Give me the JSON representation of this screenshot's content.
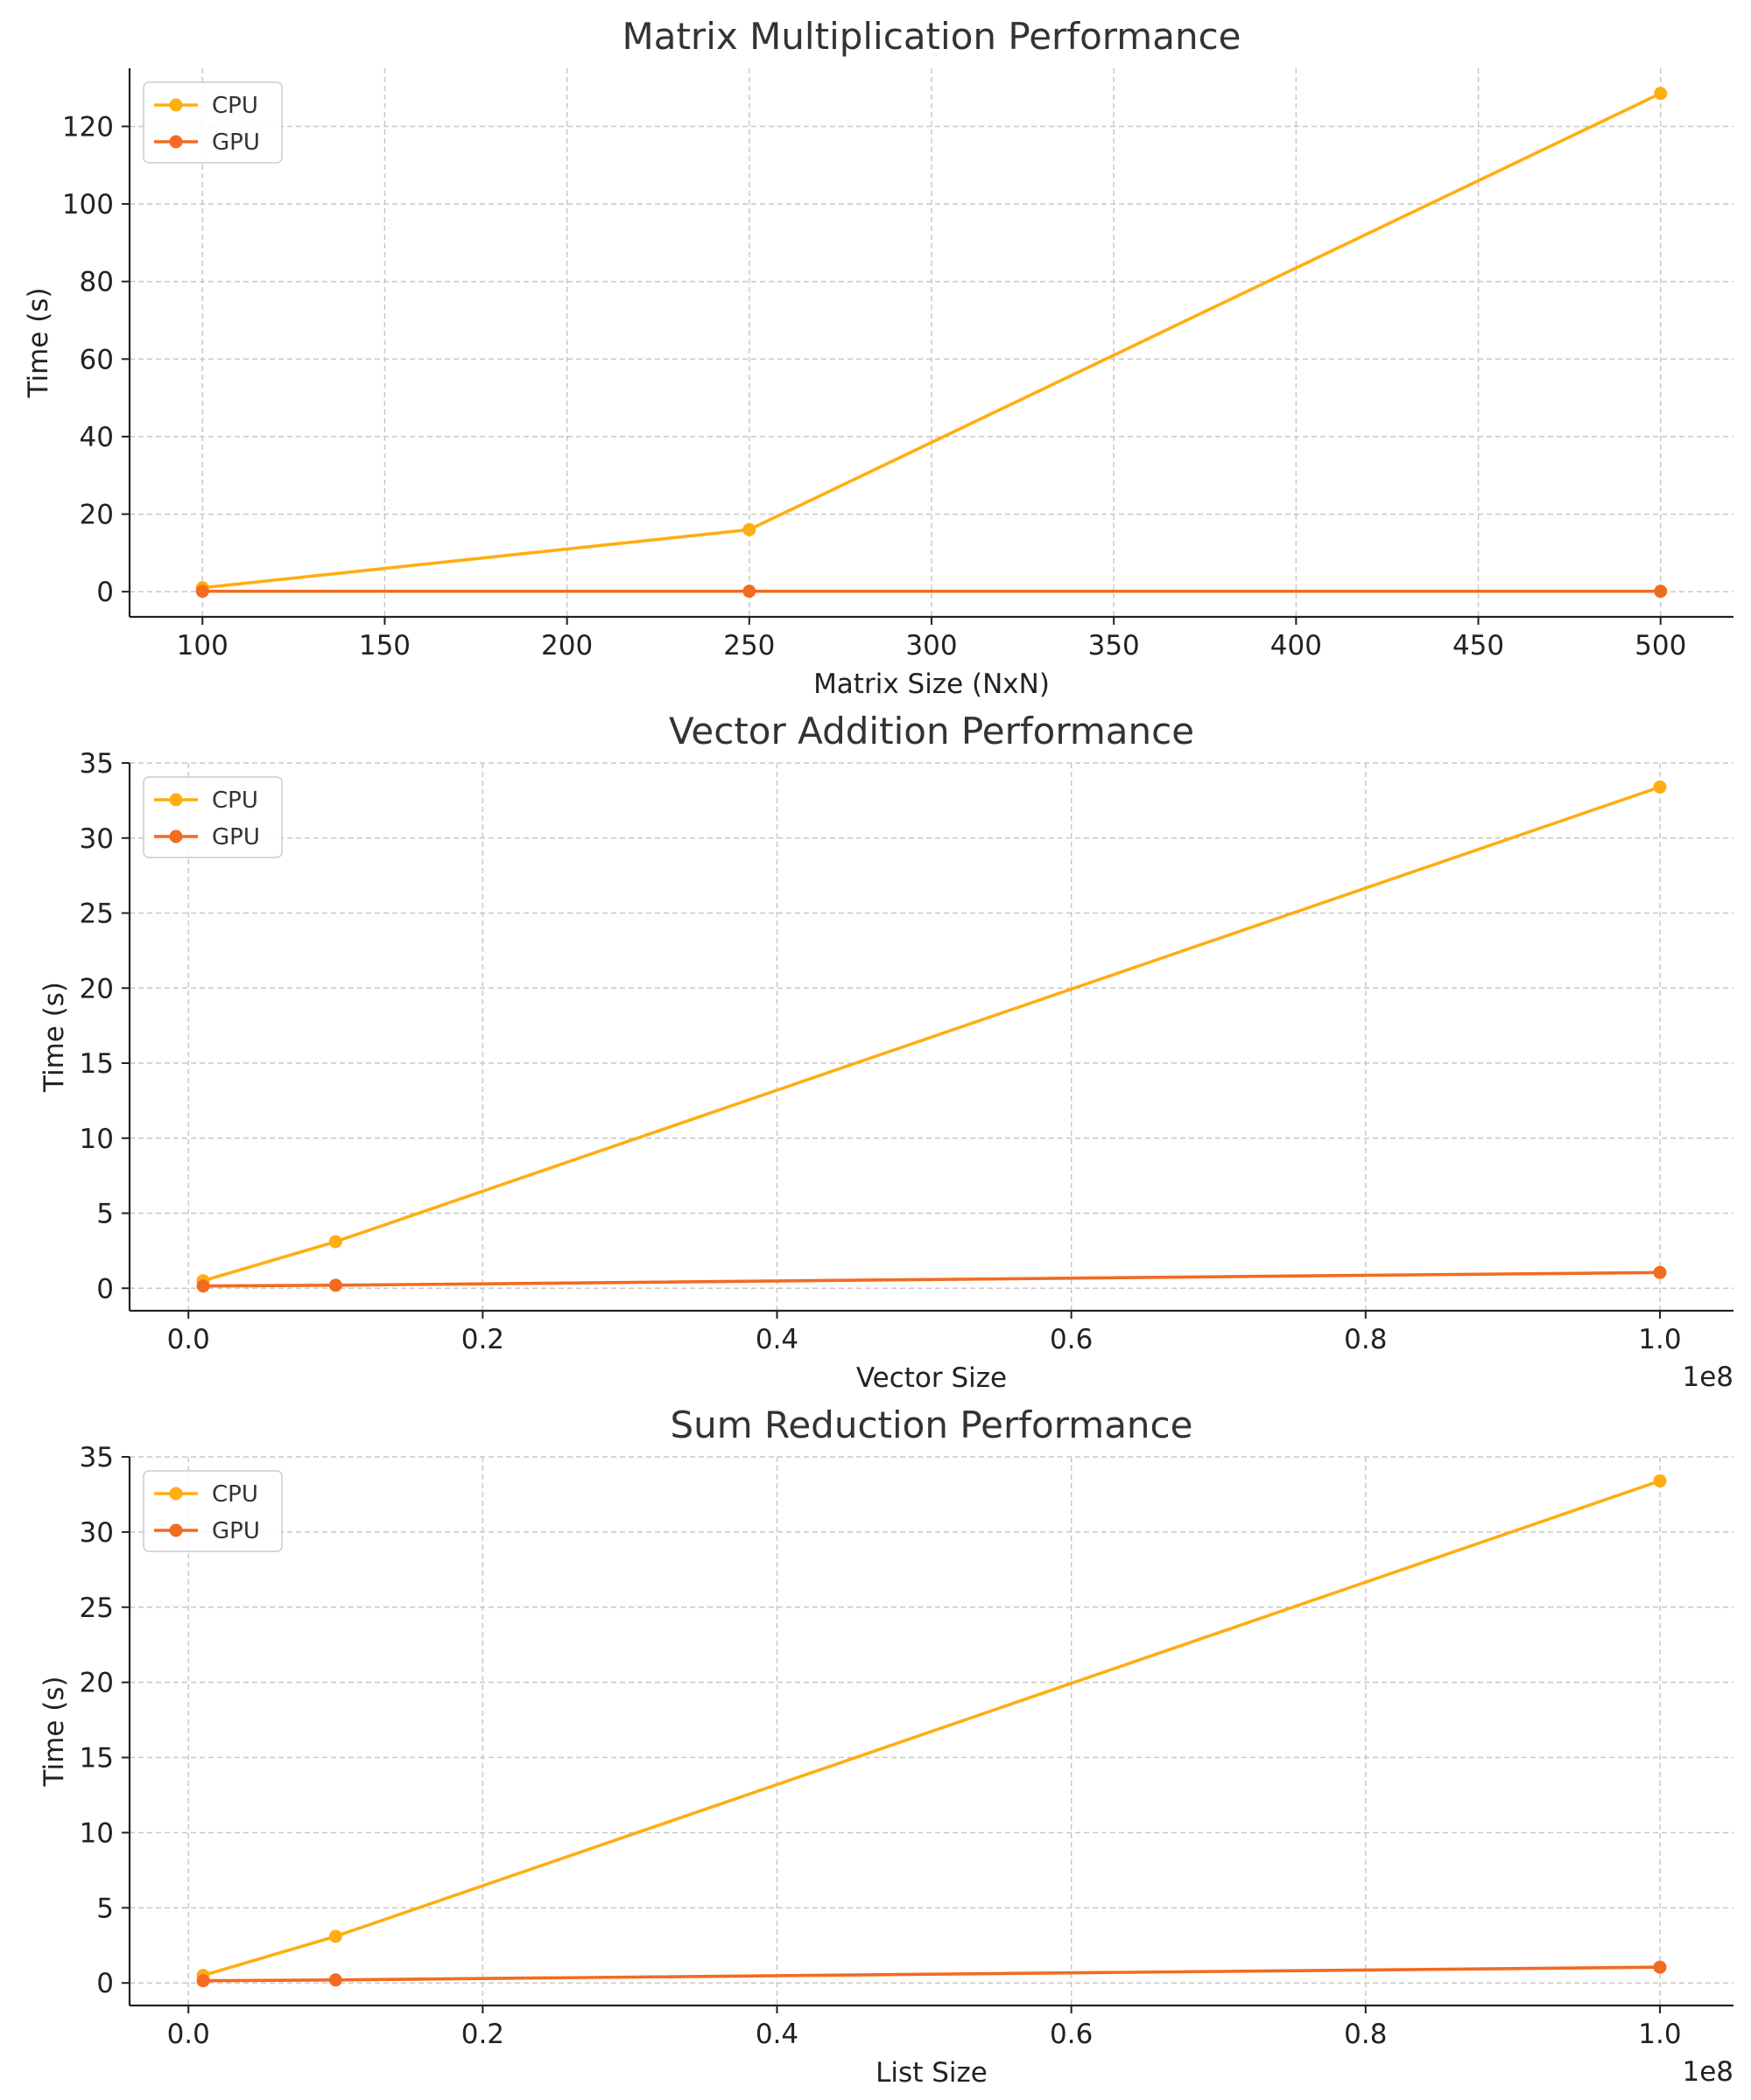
{
  "colors": {
    "cpu": "#FFAD11",
    "gpu": "#F26B21",
    "grid": "#c8c8c8",
    "axis": "#222222"
  },
  "chart_data": [
    {
      "type": "line",
      "title": "Matrix Multiplication Performance",
      "xlabel": "Matrix Size (NxN)",
      "ylabel": "Time (s)",
      "xlim": [
        80,
        520
      ],
      "ylim": [
        -6.5,
        135
      ],
      "xticks": [
        100,
        150,
        200,
        250,
        300,
        350,
        400,
        450,
        500
      ],
      "xtick_labels": [
        "100",
        "150",
        "200",
        "250",
        "300",
        "350",
        "400",
        "450",
        "500"
      ],
      "yticks": [
        0,
        20,
        40,
        60,
        80,
        100,
        120
      ],
      "ytick_labels": [
        "0",
        "20",
        "40",
        "60",
        "80",
        "100",
        "120"
      ],
      "x_offset_label": "",
      "grid": true,
      "legend": "top-left",
      "series": [
        {
          "name": "CPU",
          "color": "#FFAD11",
          "x": [
            100,
            250,
            500
          ],
          "y": [
            1.0,
            16.0,
            128.5
          ]
        },
        {
          "name": "GPU",
          "color": "#F26B21",
          "x": [
            100,
            250,
            500
          ],
          "y": [
            0.1,
            0.1,
            0.1
          ]
        }
      ]
    },
    {
      "type": "line",
      "title": "Vector Addition Performance",
      "xlabel": "Vector Size",
      "ylabel": "Time (s)",
      "xlim": [
        -4000000,
        105000000
      ],
      "ylim": [
        -1.5,
        35
      ],
      "xticks": [
        0,
        20000000,
        40000000,
        60000000,
        80000000,
        100000000
      ],
      "xtick_labels": [
        "0.0",
        "0.2",
        "0.4",
        "0.6",
        "0.8",
        "1.0"
      ],
      "yticks": [
        0,
        5,
        10,
        15,
        20,
        25,
        30,
        35
      ],
      "ytick_labels": [
        "0",
        "5",
        "10",
        "15",
        "20",
        "25",
        "30",
        "35"
      ],
      "x_offset_label": "1e8",
      "grid": true,
      "legend": "top-left",
      "series": [
        {
          "name": "CPU",
          "color": "#FFAD11",
          "x": [
            1000000,
            10000000,
            100000000
          ],
          "y": [
            0.5,
            3.1,
            33.4
          ]
        },
        {
          "name": "GPU",
          "color": "#F26B21",
          "x": [
            1000000,
            10000000,
            100000000
          ],
          "y": [
            0.15,
            0.2,
            1.05
          ]
        }
      ]
    },
    {
      "type": "line",
      "title": "Sum Reduction Performance",
      "xlabel": "List Size",
      "ylabel": "Time (s)",
      "xlim": [
        -4000000,
        105000000
      ],
      "ylim": [
        -1.5,
        35
      ],
      "xticks": [
        0,
        20000000,
        40000000,
        60000000,
        80000000,
        100000000
      ],
      "xtick_labels": [
        "0.0",
        "0.2",
        "0.4",
        "0.6",
        "0.8",
        "1.0"
      ],
      "yticks": [
        0,
        5,
        10,
        15,
        20,
        25,
        30,
        35
      ],
      "ytick_labels": [
        "0",
        "5",
        "10",
        "15",
        "20",
        "25",
        "30",
        "35"
      ],
      "x_offset_label": "1e8",
      "grid": true,
      "legend": "top-left",
      "series": [
        {
          "name": "CPU",
          "color": "#FFAD11",
          "x": [
            1000000,
            10000000,
            100000000
          ],
          "y": [
            0.5,
            3.1,
            33.4
          ]
        },
        {
          "name": "GPU",
          "color": "#F26B21",
          "x": [
            1000000,
            10000000,
            100000000
          ],
          "y": [
            0.15,
            0.2,
            1.05
          ]
        }
      ]
    }
  ]
}
